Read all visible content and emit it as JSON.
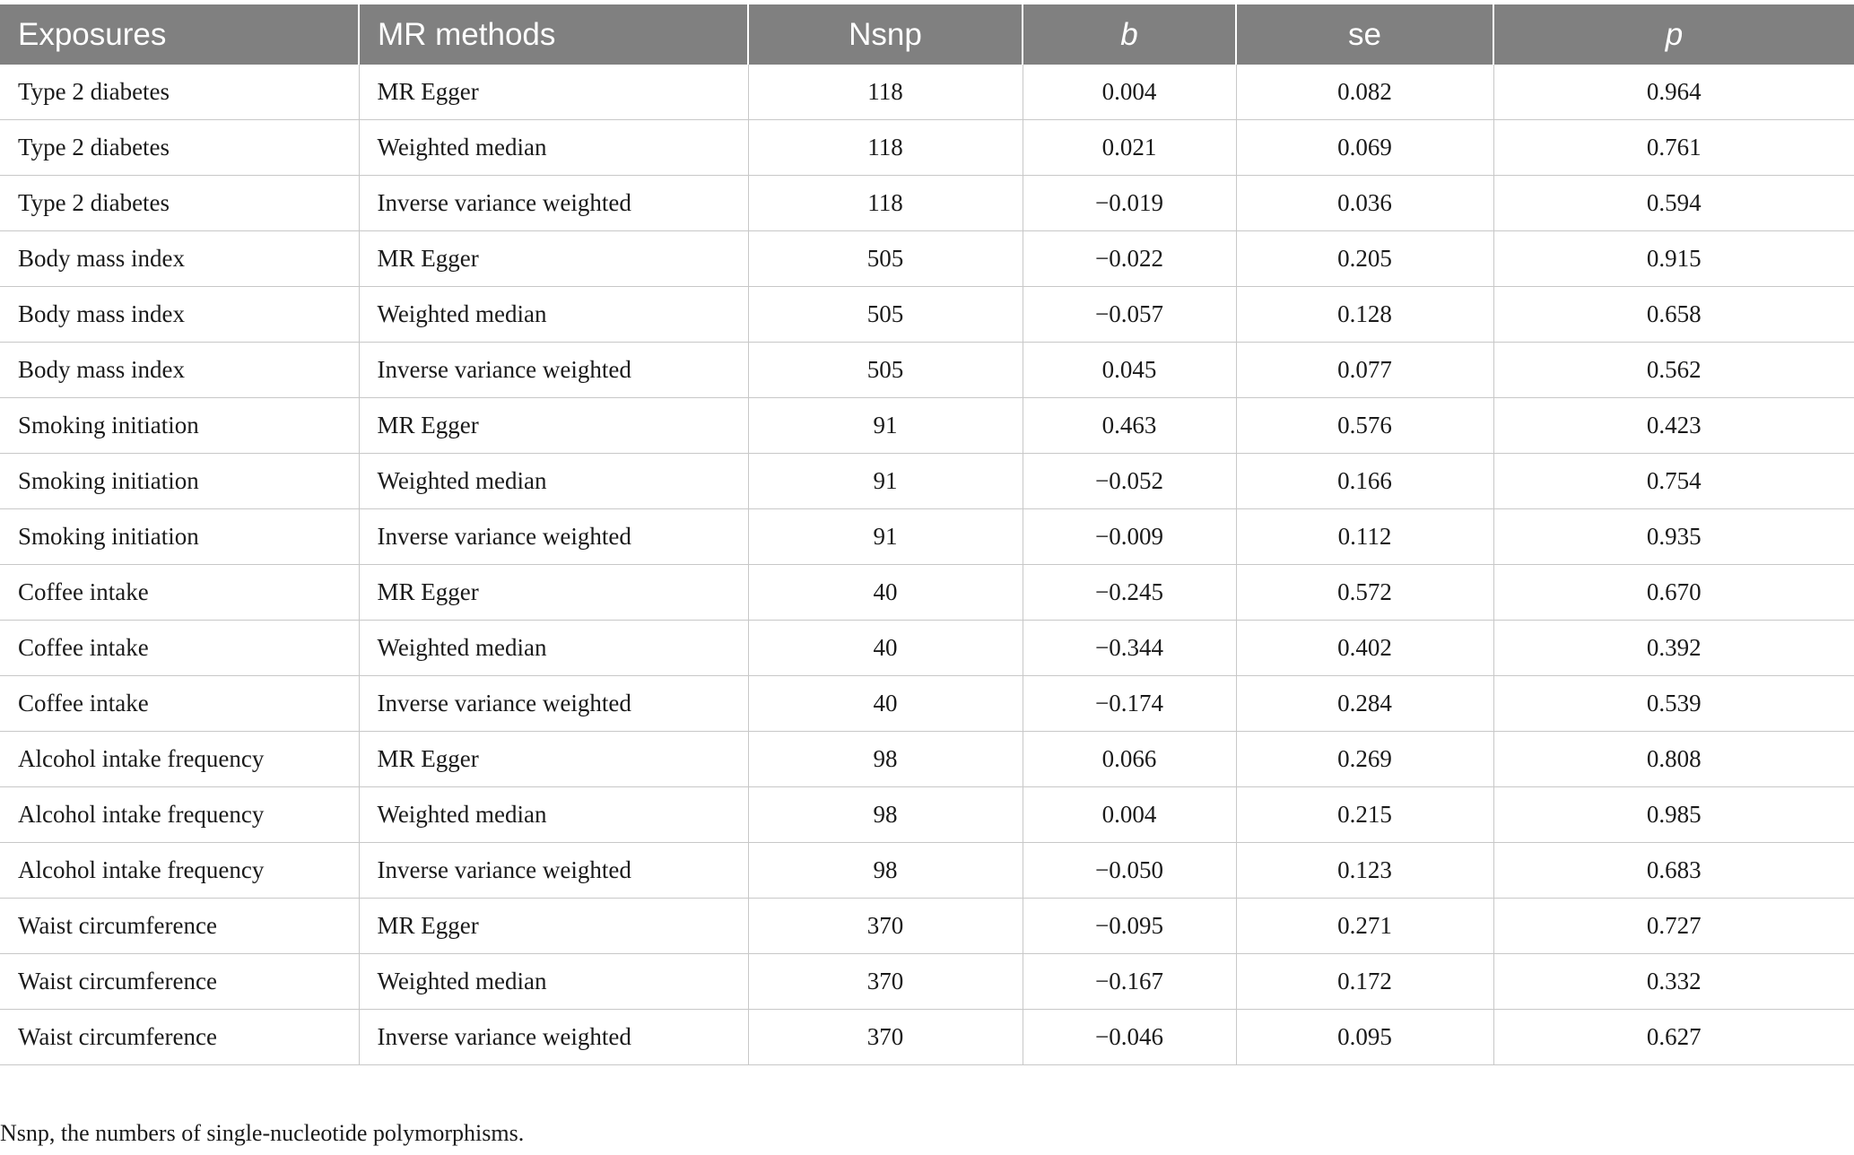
{
  "table": {
    "headers": [
      "Exposures",
      "MR methods",
      "Nsnp",
      "b",
      "se",
      "p"
    ],
    "rows": [
      [
        "Type 2 diabetes",
        "MR Egger",
        "118",
        "0.004",
        "0.082",
        "0.964"
      ],
      [
        "Type 2 diabetes",
        "Weighted median",
        "118",
        "0.021",
        "0.069",
        "0.761"
      ],
      [
        "Type 2 diabetes",
        "Inverse variance weighted",
        "118",
        "−0.019",
        "0.036",
        "0.594"
      ],
      [
        "Body mass index",
        "MR Egger",
        "505",
        "−0.022",
        "0.205",
        "0.915"
      ],
      [
        "Body mass index",
        "Weighted median",
        "505",
        "−0.057",
        "0.128",
        "0.658"
      ],
      [
        "Body mass index",
        "Inverse variance weighted",
        "505",
        "0.045",
        "0.077",
        "0.562"
      ],
      [
        "Smoking initiation",
        "MR Egger",
        "91",
        "0.463",
        "0.576",
        "0.423"
      ],
      [
        "Smoking initiation",
        "Weighted median",
        "91",
        "−0.052",
        "0.166",
        "0.754"
      ],
      [
        "Smoking initiation",
        "Inverse variance weighted",
        "91",
        "−0.009",
        "0.112",
        "0.935"
      ],
      [
        "Coffee intake",
        "MR Egger",
        "40",
        "−0.245",
        "0.572",
        "0.670"
      ],
      [
        "Coffee intake",
        "Weighted median",
        "40",
        "−0.344",
        "0.402",
        "0.392"
      ],
      [
        "Coffee intake",
        "Inverse variance weighted",
        "40",
        "−0.174",
        "0.284",
        "0.539"
      ],
      [
        "Alcohol intake frequency",
        "MR Egger",
        "98",
        "0.066",
        "0.269",
        "0.808"
      ],
      [
        "Alcohol intake frequency",
        "Weighted median",
        "98",
        "0.004",
        "0.215",
        "0.985"
      ],
      [
        "Alcohol intake frequency",
        "Inverse variance weighted",
        "98",
        "−0.050",
        "0.123",
        "0.683"
      ],
      [
        "Waist circumference",
        "MR Egger",
        "370",
        "−0.095",
        "0.271",
        "0.727"
      ],
      [
        "Waist circumference",
        "Weighted median",
        "370",
        "−0.167",
        "0.172",
        "0.332"
      ],
      [
        "Waist circumference",
        "Inverse variance weighted",
        "370",
        "−0.046",
        "0.095",
        "0.627"
      ]
    ]
  },
  "footnote": "Nsnp, the numbers of single-nucleotide polymorphisms."
}
